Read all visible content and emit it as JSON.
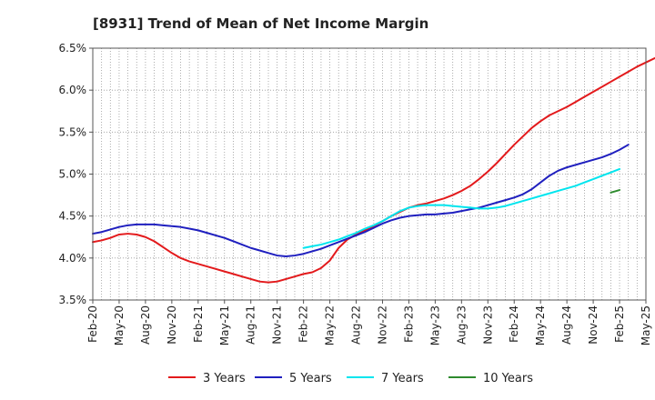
{
  "chart_data": {
    "type": "line",
    "title": "[8931]  Trend of Mean of Net Income Margin",
    "xlabel": "",
    "ylabel": "",
    "x_ticks": [
      "Feb-20",
      "May-20",
      "Aug-20",
      "Nov-20",
      "Feb-21",
      "May-21",
      "Aug-21",
      "Nov-21",
      "Feb-22",
      "May-22",
      "Aug-22",
      "Nov-22",
      "Feb-23",
      "May-23",
      "Aug-23",
      "Nov-23",
      "Feb-24",
      "May-24",
      "Aug-24",
      "Nov-24",
      "Feb-25",
      "May-25"
    ],
    "y_ticks": [
      "3.5%",
      "4.0%",
      "4.5%",
      "5.0%",
      "5.5%",
      "6.0%",
      "6.5%"
    ],
    "ylim": [
      3.5,
      6.5
    ],
    "grid": true,
    "legend_position": "bottom",
    "series": [
      {
        "name": "3 Years",
        "color": "#e31a1c",
        "start": "Feb-20",
        "values": [
          4.19,
          4.21,
          4.24,
          4.28,
          4.29,
          4.28,
          4.25,
          4.2,
          4.13,
          4.06,
          4.0,
          3.96,
          3.93,
          3.9,
          3.87,
          3.84,
          3.81,
          3.78,
          3.75,
          3.72,
          3.71,
          3.72,
          3.75,
          3.78,
          3.81,
          3.83,
          3.88,
          3.97,
          4.12,
          4.22,
          4.28,
          4.33,
          4.38,
          4.44,
          4.5,
          4.55,
          4.6,
          4.63,
          4.65,
          4.68,
          4.71,
          4.75,
          4.8,
          4.86,
          4.94,
          5.03,
          5.13,
          5.24,
          5.35,
          5.45,
          5.55,
          5.63,
          5.7,
          5.75,
          5.8,
          5.86,
          5.92,
          5.98,
          6.04,
          6.1,
          6.16,
          6.22,
          6.28,
          6.33,
          6.38
        ]
      },
      {
        "name": "5 Years",
        "color": "#1f1fbf",
        "start": "Feb-20",
        "values": [
          4.29,
          4.31,
          4.34,
          4.37,
          4.39,
          4.4,
          4.4,
          4.4,
          4.39,
          4.38,
          4.37,
          4.35,
          4.33,
          4.3,
          4.27,
          4.24,
          4.2,
          4.16,
          4.12,
          4.09,
          4.06,
          4.03,
          4.02,
          4.03,
          4.05,
          4.08,
          4.11,
          4.15,
          4.19,
          4.23,
          4.27,
          4.31,
          4.36,
          4.41,
          4.45,
          4.48,
          4.5,
          4.51,
          4.52,
          4.52,
          4.53,
          4.54,
          4.56,
          4.58,
          4.6,
          4.63,
          4.66,
          4.69,
          4.72,
          4.76,
          4.82,
          4.9,
          4.98,
          5.04,
          5.08,
          5.11,
          5.14,
          5.17,
          5.2,
          5.24,
          5.29,
          5.35
        ]
      },
      {
        "name": "7 Years",
        "color": "#00e5ee",
        "start": "Feb-22",
        "values": [
          4.12,
          4.14,
          4.16,
          4.19,
          4.22,
          4.26,
          4.3,
          4.35,
          4.39,
          4.44,
          4.5,
          4.56,
          4.6,
          4.62,
          4.63,
          4.63,
          4.63,
          4.62,
          4.61,
          4.6,
          4.59,
          4.59,
          4.6,
          4.62,
          4.65,
          4.68,
          4.71,
          4.74,
          4.77,
          4.8,
          4.83,
          4.86,
          4.9,
          4.94,
          4.98,
          5.02,
          5.06
        ]
      },
      {
        "name": "10 Years",
        "color": "#2e8b2e",
        "start": "Jan-25",
        "values": [
          4.78,
          4.81
        ]
      }
    ]
  }
}
